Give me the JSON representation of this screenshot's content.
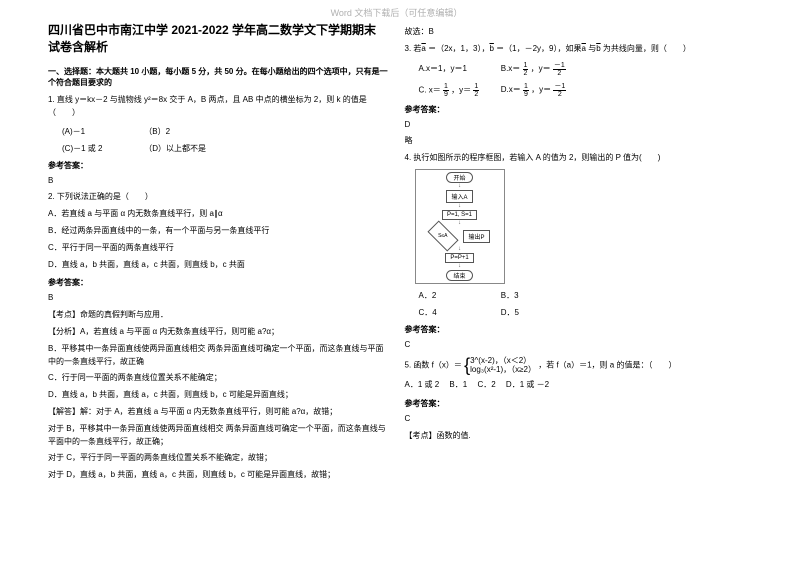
{
  "watermark": "Word 文档下载后（可任意编辑）",
  "title_line1": "四川省巴中市南江中学 2021-2022 学年高二数学文下学期期末",
  "title_line2": "试卷含解析",
  "section1": "一、选择题：本大题共 10 小题，每小题 5 分，共 50 分。在每小题给出的四个选项中，只有是一个符合题目要求的",
  "q1": {
    "stem": "1. 直线 y＝kx－2 与抛物线 y²＝8x 交于 A，B 两点，且 AB 中点的横坐标为 2，则 k 的值是（　　）",
    "optA": "(A)－1",
    "optB": "（B）2",
    "optC": "(C)－1 或 2",
    "optD": "（D）以上都不是",
    "ans_label": "参考答案：",
    "ans": "B"
  },
  "q2": {
    "stem": "2. 下列说法正确的是（　　）",
    "A": "A．若直线 a 与平面 α 内无数条直线平行，则 a∥α",
    "B": "B．经过两条异面直线中的一条，有一个平面与另一条直线平行",
    "C": "C．平行于同一平面的两条直线平行",
    "D": "D．直线 a，b 共面，直线 a，c 共面，则直线 b，c 共面",
    "ans_label": "参考答案：",
    "ans": "B",
    "kd": "【考点】命题的真假判断与应用．",
    "fx": "【分析】A，若直线 a 与平面 α 内无数条直线平行，则可能 a?α；",
    "fxB": "B．平移其中一条异面直线使两异面直线相交 两条异面直线可确定一个平面，而这条直线与平面中的一条直线平行，故正确",
    "fxC": "C．行于同一平面的两条直线位置关系不能确定；",
    "fxD": "D．直线 a，b 共面，直线 a，c 共面，则直线 b，c 可能是异面直线；",
    "jd": "【解答】解：对于 A，若直线 a 与平面 α 内无数条直线平行，则可能 a?α，故错；",
    "jdB": "对于 B，平移其中一条异面直线使两异面直线相交 两条异面直线可确定一个平面，而这条直线与平面中的一条直线平行，故正确；",
    "jdC": "对于 C，平行于同一平面的两条直线位置关系不能确定，故错；",
    "jdD": "对于 D，直线 a，b 共面，直线 a，c 共面，则直线 b，c 可能是异面直线，故错；",
    "gx": "故选：B"
  },
  "q3": {
    "stem_a": "3. 若",
    "stem_b": "＝（2x，1，3），",
    "stem_c": "＝（1，－2y，9），如果",
    "stem_d": "与",
    "stem_e": "为共线向量，则（　　）",
    "Aopt": "A.x＝1，y＝1",
    "Bopt_a": "B.x＝",
    "Bopt_b": "，y＝",
    "Copt_a": "C. x＝",
    "Copt_b": "，y＝",
    "Dopt_a": "D.x＝",
    "Dopt_b": "，y＝",
    "ans_label": "参考答案：",
    "ans": "D",
    "lue": "略"
  },
  "q4": {
    "stem": "4. 执行如图所示的程序框图，若输入 A 的值为 2，则输出的 P 值为(　　)",
    "Aopt": "A．2",
    "Bopt": "B．3",
    "Copt": "C．4",
    "Dopt": "D．5",
    "ans_label": "参考答案：",
    "ans": "C",
    "fc": {
      "start": "开始",
      "b1": "输入A",
      "b2": "P=1, S=1",
      "b3": "P=P+1",
      "diamond": "S≤A",
      "out": "输出P",
      "end": "结束"
    }
  },
  "q5": {
    "stem_a": "5. 函数 f（x）＝",
    "pw1": "3^(x-2)，（x＜2）",
    "pw2": "log₃(x²-1)，（x≥2）",
    "stem_b": "，若 f（a）＝1，则 a 的值是：（　　）",
    "Aopt": "A．1 或 2",
    "Bopt": "B．1",
    "Copt": "C．2",
    "Dopt": "D．1 或 －2",
    "ans_label": "参考答案：",
    "ans": "C",
    "kd": "【考点】函数的值."
  }
}
